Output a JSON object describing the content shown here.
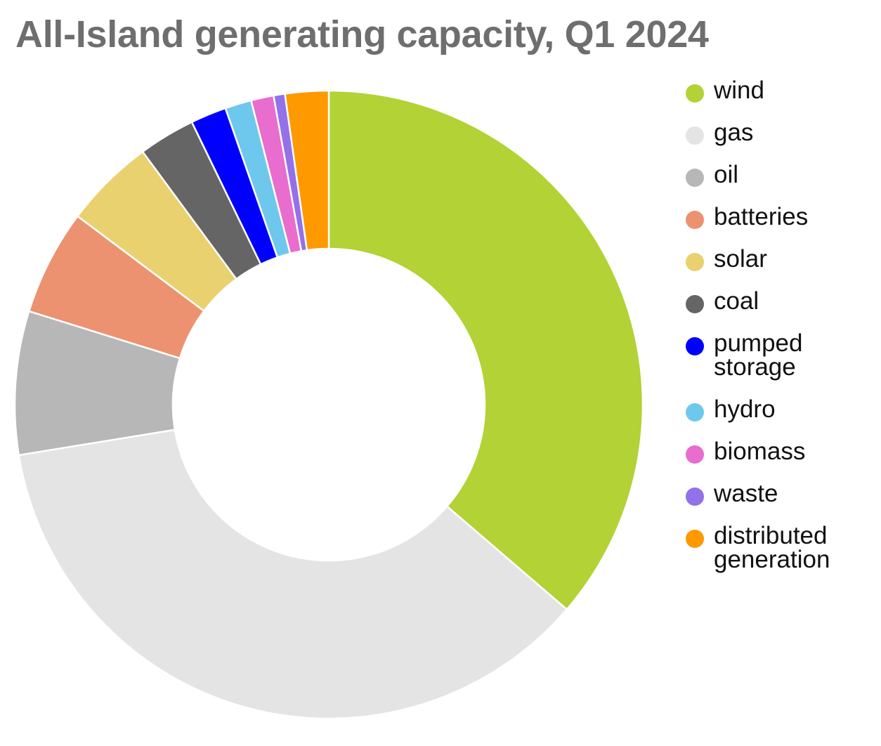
{
  "chart_data": {
    "type": "pie",
    "style": "donut",
    "title": "All-Island generating capacity, Q1 2024",
    "legend_position": "right",
    "units": "share of total capacity (%)",
    "slices": [
      {
        "label": "wind",
        "value": 37.4,
        "color": "#b2d235"
      },
      {
        "label": "gas",
        "value": 37.2,
        "color": "#e4e4e4"
      },
      {
        "label": "oil",
        "value": 7.6,
        "color": "#b7b7b7"
      },
      {
        "label": "batteries",
        "value": 5.6,
        "color": "#ec9271"
      },
      {
        "label": "solar",
        "value": 4.8,
        "color": "#e9d16f"
      },
      {
        "label": "coal",
        "value": 3.0,
        "color": "#656565"
      },
      {
        "label": "pumped storage",
        "value": 1.9,
        "color": "#0000ff"
      },
      {
        "label": "hydro",
        "value": 1.4,
        "color": "#6ec8ed"
      },
      {
        "label": "biomass",
        "value": 1.2,
        "color": "#e96ccf"
      },
      {
        "label": "waste",
        "value": 0.6,
        "color": "#9470e9"
      },
      {
        "label": "distributed generation",
        "value": 2.3,
        "color": "#ff9900"
      }
    ]
  }
}
